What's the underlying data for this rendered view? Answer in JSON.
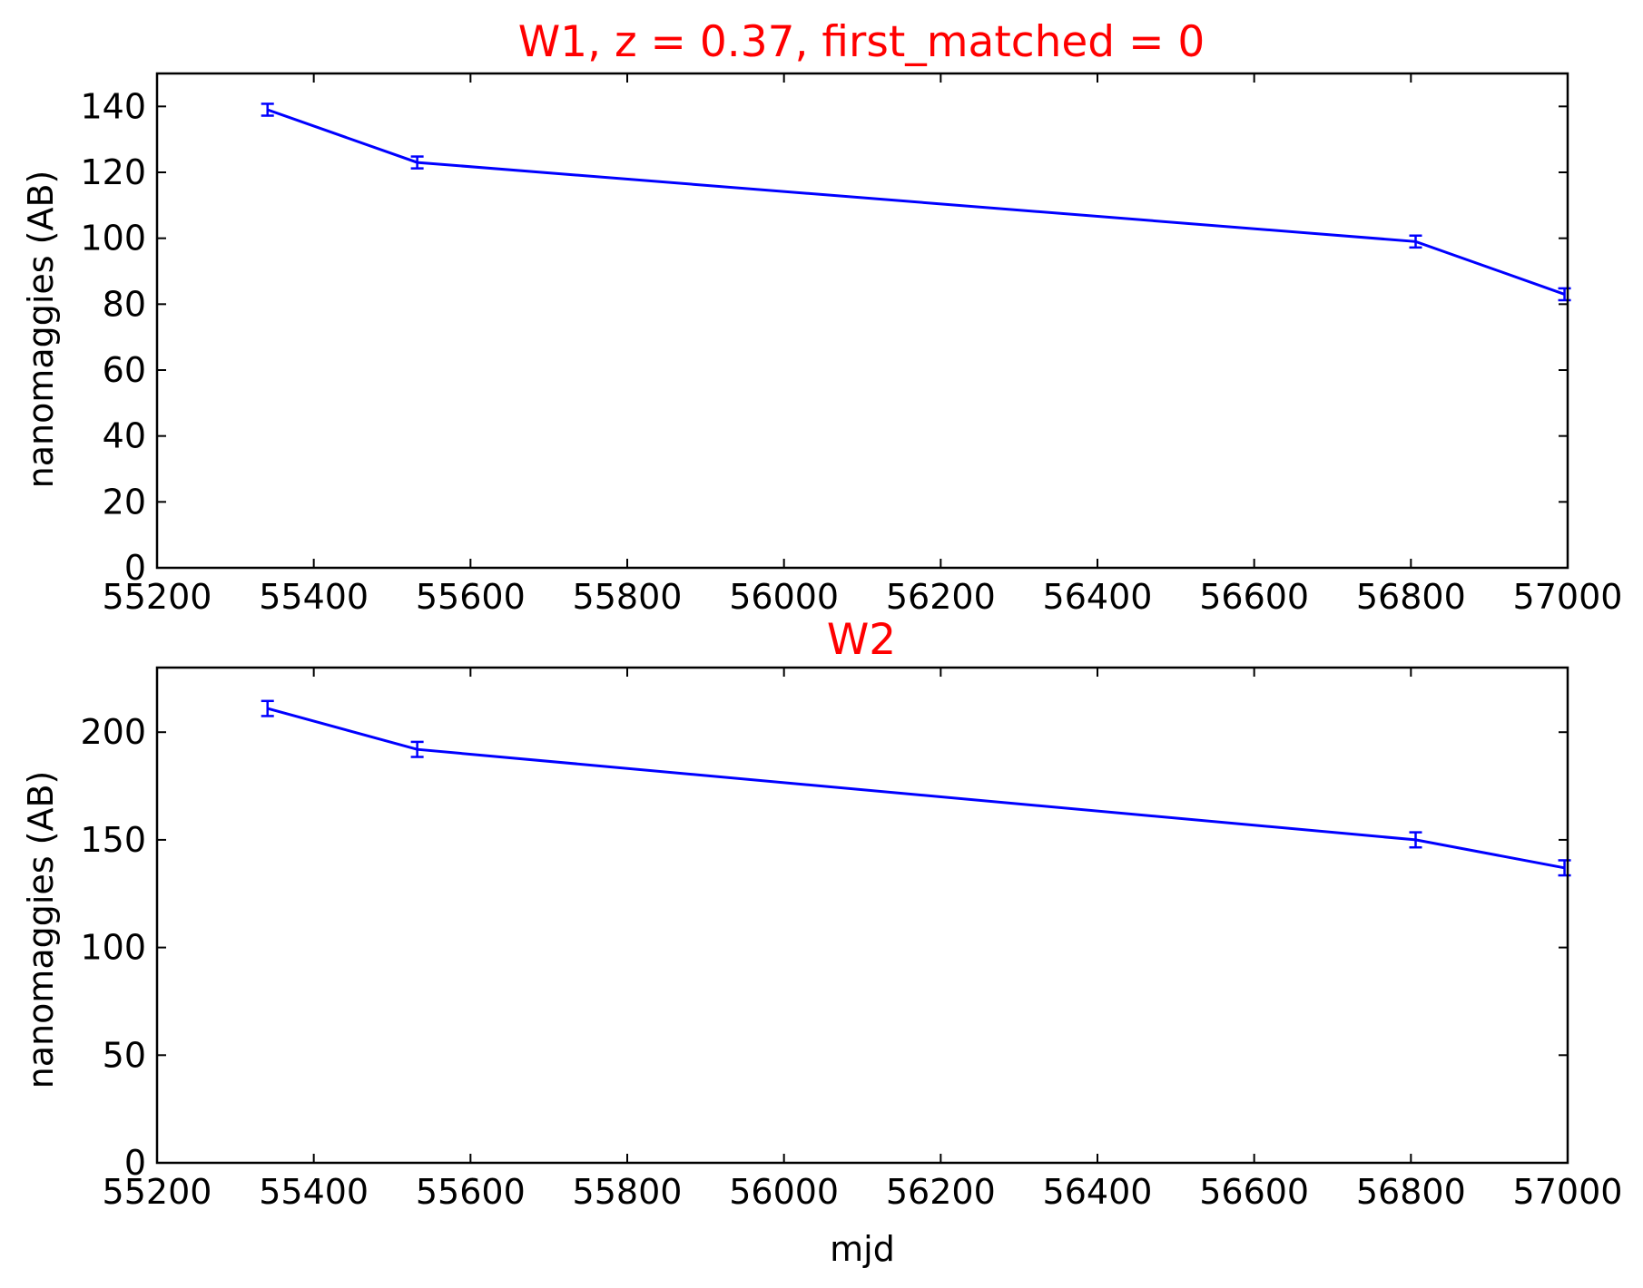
{
  "chart_data": [
    {
      "type": "line",
      "title": "W1, z = 0.37, first_matched = 0",
      "title_color": "#ff0000",
      "xlabel": "",
      "ylabel": "nanomaggies (AB)",
      "xlim": [
        55200,
        57000
      ],
      "ylim": [
        0,
        150
      ],
      "xticks": [
        55200,
        55400,
        55600,
        55800,
        56000,
        56200,
        56400,
        56600,
        56800,
        57000
      ],
      "yticks": [
        0,
        20,
        40,
        60,
        80,
        100,
        120,
        140
      ],
      "xtick_labels": [
        "55200",
        "55400",
        "55600",
        "55800",
        "56000",
        "56200",
        "56400",
        "56600",
        "56800",
        "57000"
      ],
      "ytick_labels": [
        "0",
        "20",
        "40",
        "60",
        "80",
        "100",
        "120",
        "140"
      ],
      "grid": false,
      "line_color": "#0000ff",
      "series": [
        {
          "x": [
            55341,
            55532,
            56806,
            56996
          ],
          "y": [
            139,
            123,
            99,
            83
          ],
          "yerr": [
            1.8,
            1.8,
            1.8,
            1.8
          ]
        }
      ]
    },
    {
      "type": "line",
      "title": "W2",
      "title_color": "#ff0000",
      "xlabel": "mjd",
      "ylabel": "nanomaggies (AB)",
      "xlim": [
        55200,
        57000
      ],
      "ylim": [
        0,
        230
      ],
      "xticks": [
        55200,
        55400,
        55600,
        55800,
        56000,
        56200,
        56400,
        56600,
        56800,
        57000
      ],
      "yticks": [
        0,
        50,
        100,
        150,
        200
      ],
      "xtick_labels": [
        "55200",
        "55400",
        "55600",
        "55800",
        "56000",
        "56200",
        "56400",
        "56600",
        "56800",
        "57000"
      ],
      "ytick_labels": [
        "0",
        "50",
        "100",
        "150",
        "200"
      ],
      "grid": false,
      "line_color": "#0000ff",
      "series": [
        {
          "x": [
            55341,
            55532,
            56806,
            56996
          ],
          "y": [
            211,
            192,
            150,
            137
          ],
          "yerr": [
            3.5,
            3.5,
            3.5,
            3.5
          ]
        }
      ]
    }
  ]
}
